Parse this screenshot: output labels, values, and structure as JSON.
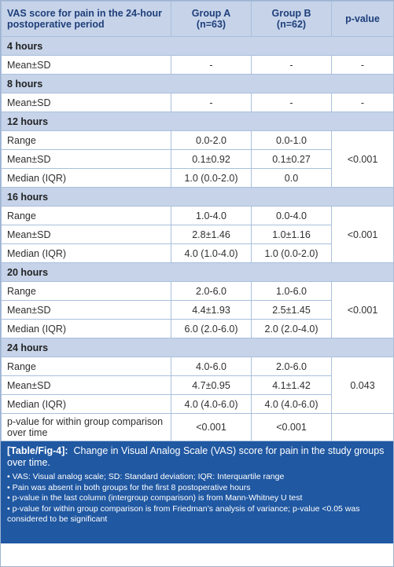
{
  "header": {
    "col1": "VAS score for pain in the 24-hour postoperative period",
    "col2": "Group A (n=63)",
    "col3": "Group B (n=62)",
    "col4": "p-value"
  },
  "sections": [
    {
      "title": "4 hours",
      "rows": [
        {
          "label": "Mean±SD",
          "a": "-",
          "b": "-"
        }
      ],
      "p": "-"
    },
    {
      "title": "8 hours",
      "rows": [
        {
          "label": "Mean±SD",
          "a": "-",
          "b": "-"
        }
      ],
      "p": "-"
    },
    {
      "title": "12 hours",
      "rows": [
        {
          "label": "Range",
          "a": "0.0-2.0",
          "b": "0.0-1.0"
        },
        {
          "label": "Mean±SD",
          "a": "0.1±0.92",
          "b": "0.1±0.27"
        },
        {
          "label": "Median (IQR)",
          "a": "1.0 (0.0-2.0)",
          "b": "0.0"
        }
      ],
      "p": "<0.001"
    },
    {
      "title": "16 hours",
      "rows": [
        {
          "label": "Range",
          "a": "1.0-4.0",
          "b": "0.0-4.0"
        },
        {
          "label": "Mean±SD",
          "a": "2.8±1.46",
          "b": "1.0±1.16"
        },
        {
          "label": "Median (IQR)",
          "a": "4.0 (1.0-4.0)",
          "b": "1.0 (0.0-2.0)"
        }
      ],
      "p": "<0.001"
    },
    {
      "title": "20 hours",
      "rows": [
        {
          "label": "Range",
          "a": "2.0-6.0",
          "b": "1.0-6.0"
        },
        {
          "label": "Mean±SD",
          "a": "4.4±1.93",
          "b": "2.5±1.45"
        },
        {
          "label": "Median (IQR)",
          "a": "6.0 (2.0-6.0)",
          "b": "2.0 (2.0-4.0)"
        }
      ],
      "p": "<0.001"
    },
    {
      "title": "24 hours",
      "rows": [
        {
          "label": "Range",
          "a": "4.0-6.0",
          "b": "2.0-6.0"
        },
        {
          "label": "Mean±SD",
          "a": "4.7±0.95",
          "b": "4.1±1.42"
        },
        {
          "label": "Median (IQR)",
          "a": "4.0 (4.0-6.0)",
          "b": "4.0 (4.0-6.0)"
        }
      ],
      "p": "0.043"
    }
  ],
  "footer_row": {
    "label": "p-value for within group comparison over time",
    "a": "<0.001",
    "b": "<0.001"
  },
  "caption": {
    "tag": "[Table/Fig-4]:",
    "text": "Change in Visual Analog Scale (VAS) score for pain in the study groups over time.",
    "notes": [
      "VAS: Visual analog scale; SD: Standard deviation; IQR: Interquartile range",
      "Pain was absent in both groups for the first 8 postoperative hours",
      "p-value in the last column (intergroup comparison) is from Mann-Whitney U test",
      "p-value for within group comparison is from Friedman’s analysis of variance; p-value <0.05 was considered to be significant"
    ]
  },
  "colors": {
    "header_bg": "#c6d3e9",
    "caption_bg": "#2058a2",
    "border": "#a9bfdc"
  }
}
